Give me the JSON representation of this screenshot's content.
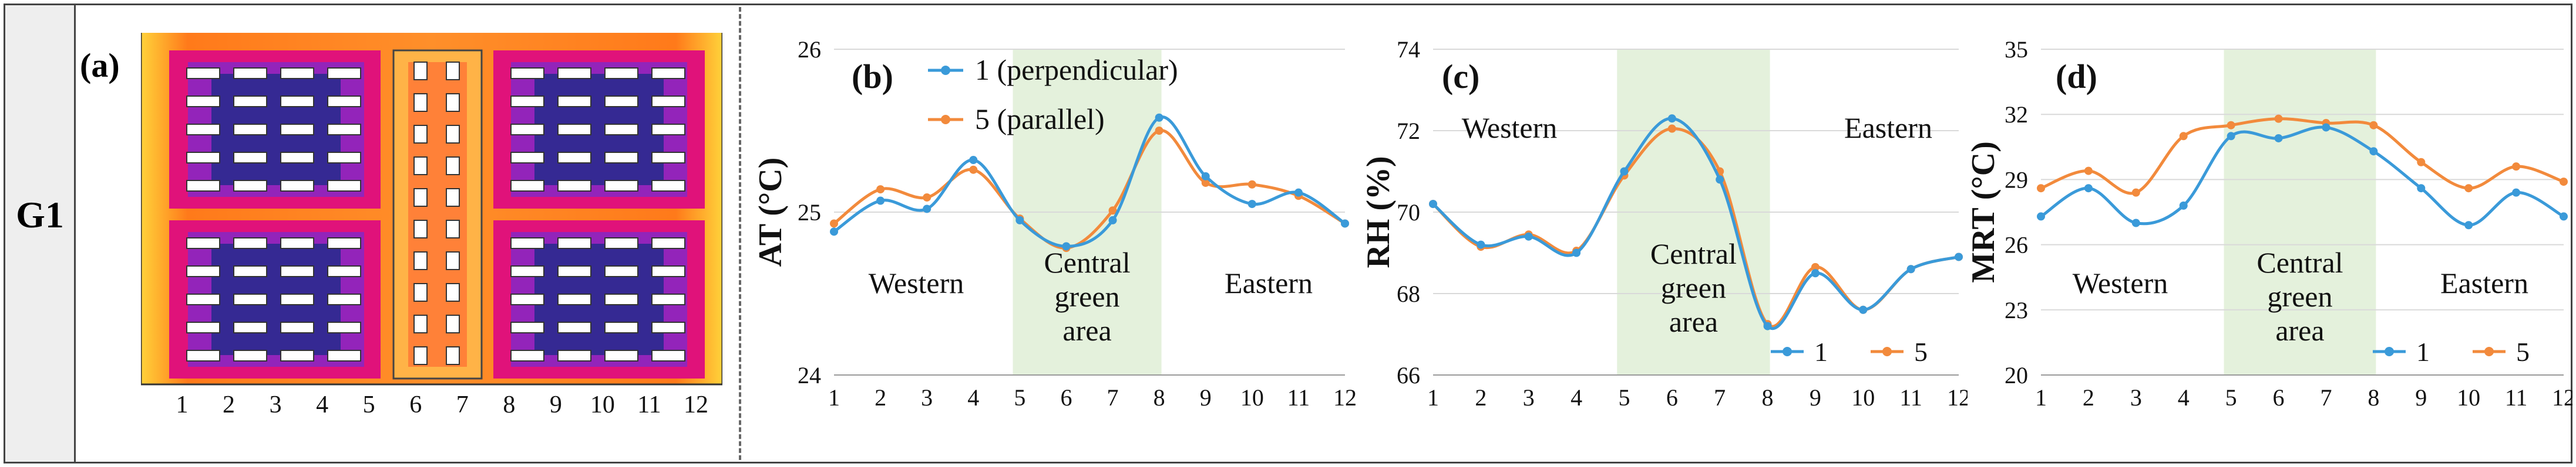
{
  "row_label": "G1",
  "panels": {
    "a": {
      "label": "(a)",
      "ticks": [
        "1",
        "2",
        "3",
        "4",
        "5",
        "6",
        "7",
        "8",
        "9",
        "10",
        "11",
        "12"
      ]
    },
    "b": {
      "label": "(b)"
    },
    "c": {
      "label": "(c)"
    },
    "d": {
      "label": "(d)"
    }
  },
  "colors": {
    "series1": "#3a9ad9",
    "series5": "#f28a3c",
    "zone": "#e4f1dc"
  },
  "chart_data": [
    {
      "type": "line",
      "id": "b",
      "title": "",
      "xlabel": "",
      "ylabel": "AT (°C)",
      "x": [
        1,
        2,
        3,
        4,
        5,
        6,
        7,
        8,
        9,
        10,
        11,
        12
      ],
      "ylim": [
        24,
        26
      ],
      "yticks": [
        24,
        25,
        26
      ],
      "series": [
        {
          "name": "1 (perpendicular)",
          "values": [
            24.88,
            25.07,
            25.02,
            25.32,
            24.95,
            24.79,
            24.95,
            25.58,
            25.22,
            25.05,
            25.12,
            24.93
          ]
        },
        {
          "name": "5 (parallel)",
          "values": [
            24.93,
            25.14,
            25.09,
            25.26,
            24.96,
            24.78,
            25.01,
            25.5,
            25.18,
            25.17,
            25.1,
            24.93
          ]
        }
      ],
      "legend": {
        "placement": "top-left",
        "labels": [
          "1 (perpendicular)",
          "5 (parallel)"
        ]
      },
      "zone": {
        "x_from": 4.85,
        "x_to": 8.05
      },
      "annotations": {
        "western": "Western",
        "central": [
          "Central",
          "green",
          "area"
        ],
        "eastern": "Eastern"
      }
    },
    {
      "type": "line",
      "id": "c",
      "title": "",
      "xlabel": "",
      "ylabel": "RH (%)",
      "x": [
        1,
        2,
        3,
        4,
        5,
        6,
        7,
        8,
        9,
        10,
        11,
        12
      ],
      "ylim": [
        66,
        74
      ],
      "yticks": [
        66,
        68,
        70,
        72,
        74
      ],
      "series": [
        {
          "name": "1",
          "values": [
            70.2,
            69.2,
            69.4,
            69.0,
            71.0,
            72.3,
            70.8,
            67.2,
            68.5,
            67.6,
            68.6,
            68.9
          ]
        },
        {
          "name": "5",
          "values": [
            70.2,
            69.15,
            69.45,
            69.05,
            70.9,
            72.05,
            71.0,
            67.25,
            68.65,
            67.6,
            68.6,
            68.9
          ]
        }
      ],
      "legend": {
        "placement": "bottom-right",
        "labels": [
          "1",
          "5"
        ]
      },
      "zone": {
        "x_from": 4.85,
        "x_to": 8.05
      },
      "annotations": {
        "western": "Western",
        "central": [
          "Central",
          "green",
          "area"
        ],
        "eastern": "Eastern"
      }
    },
    {
      "type": "line",
      "id": "d",
      "title": "",
      "xlabel": "",
      "ylabel": "MRT (°C)",
      "x": [
        1,
        2,
        3,
        4,
        5,
        6,
        7,
        8,
        9,
        10,
        11,
        12
      ],
      "ylim": [
        20,
        35
      ],
      "yticks": [
        20,
        23,
        26,
        29,
        32,
        35
      ],
      "series": [
        {
          "name": "1",
          "values": [
            27.3,
            28.6,
            27.0,
            27.8,
            31.0,
            30.9,
            31.4,
            30.3,
            28.6,
            26.9,
            28.4,
            27.3
          ]
        },
        {
          "name": "5",
          "values": [
            28.6,
            29.4,
            28.4,
            31.0,
            31.5,
            31.8,
            31.6,
            31.5,
            29.8,
            28.6,
            29.6,
            28.9
          ]
        }
      ],
      "legend": {
        "placement": "bottom-right",
        "labels": [
          "1",
          "5"
        ]
      },
      "zone": {
        "x_from": 4.85,
        "x_to": 8.05
      },
      "annotations": {
        "western": "Western",
        "central": [
          "Central",
          "green",
          "area"
        ],
        "eastern": "Eastern"
      }
    }
  ]
}
